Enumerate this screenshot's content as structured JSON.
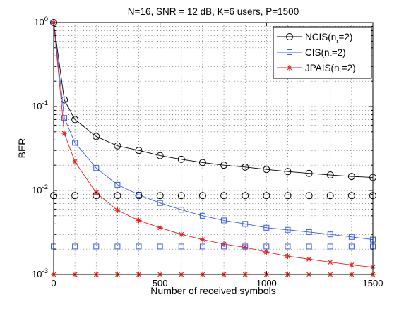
{
  "chart_data": {
    "type": "line",
    "title": "N=16, SNR = 12 dB, K=6 users, P=1500",
    "xlabel": "Number of received symbols",
    "ylabel": "BER",
    "xlim": [
      0,
      1500
    ],
    "ylim": [
      0.001,
      1
    ],
    "yscale": "log",
    "grid": true,
    "legend_position": "top-right",
    "xticks": [
      0,
      500,
      1000,
      1500
    ],
    "xtick_labels": [
      "0",
      "500",
      "1000",
      "1500"
    ],
    "yticks": [
      0.001,
      0.01,
      0.1,
      1
    ],
    "ytick_labels": [
      {
        "base": "10",
        "exp": "-3"
      },
      {
        "base": "10",
        "exp": "-2"
      },
      {
        "base": "10",
        "exp": "-1"
      },
      {
        "base": "10",
        "exp": "0"
      }
    ],
    "series": [
      {
        "name": "NCIS(n_r=2)",
        "legend_main": "NCIS(n",
        "legend_sub": "r",
        "legend_tail": "=2)",
        "color": "#000000",
        "marker": "circle",
        "x": [
          0,
          50,
          100,
          200,
          300,
          400,
          500,
          600,
          700,
          800,
          900,
          1000,
          1100,
          1200,
          1300,
          1400,
          1500
        ],
        "values": [
          1.0,
          0.12,
          0.07,
          0.044,
          0.034,
          0.03,
          0.026,
          0.0235,
          0.0215,
          0.02,
          0.019,
          0.0178,
          0.0168,
          0.016,
          0.0153,
          0.0147,
          0.0143
        ]
      },
      {
        "name": "CIS(n_r=2)",
        "legend_main": "CIS(n",
        "legend_sub": "r",
        "legend_tail": "=2)",
        "color": "#3c5ae6",
        "marker": "square",
        "x": [
          0,
          50,
          100,
          200,
          300,
          400,
          500,
          600,
          700,
          800,
          900,
          1000,
          1100,
          1200,
          1300,
          1400,
          1500
        ],
        "values": [
          1.0,
          0.073,
          0.037,
          0.0185,
          0.0117,
          0.0089,
          0.0071,
          0.0059,
          0.005,
          0.0044,
          0.004,
          0.0036,
          0.0034,
          0.0032,
          0.003,
          0.0028,
          0.0026
        ]
      },
      {
        "name": "JPAIS(n_r=2)",
        "legend_main": "JPAIS(n",
        "legend_sub": "r",
        "legend_tail": "=2)",
        "color": "#e62020",
        "marker": "star",
        "x": [
          0,
          50,
          100,
          200,
          300,
          400,
          500,
          600,
          700,
          800,
          900,
          1000,
          1100,
          1200,
          1300,
          1400,
          1500
        ],
        "values": [
          1.0,
          0.048,
          0.022,
          0.0094,
          0.0058,
          0.0044,
          0.0036,
          0.003,
          0.0026,
          0.0023,
          0.0021,
          0.00185,
          0.00165,
          0.00152,
          0.0014,
          0.0013,
          0.00122
        ]
      },
      {
        "name": "",
        "color": "#000000",
        "marker": "circle",
        "line": false,
        "x": [
          0,
          100,
          200,
          300,
          400,
          500,
          600,
          700,
          800,
          900,
          1000,
          1100,
          1200,
          1300,
          1400,
          1500
        ],
        "values": [
          0.0087,
          0.0087,
          0.0087,
          0.0087,
          0.0087,
          0.0087,
          0.0087,
          0.0087,
          0.0087,
          0.0087,
          0.0087,
          0.0087,
          0.0087,
          0.0087,
          0.0087,
          0.0087
        ]
      },
      {
        "name": "",
        "color": "#3c5ae6",
        "marker": "square",
        "line": false,
        "x": [
          0,
          100,
          200,
          300,
          400,
          500,
          600,
          700,
          800,
          900,
          1000,
          1100,
          1200,
          1300,
          1400,
          1500
        ],
        "values": [
          0.00215,
          0.00215,
          0.00215,
          0.00215,
          0.00215,
          0.00215,
          0.00215,
          0.00215,
          0.00215,
          0.00215,
          0.00215,
          0.00215,
          0.00215,
          0.00215,
          0.00215,
          0.00215
        ]
      },
      {
        "name": "",
        "color": "#e62020",
        "marker": "star",
        "line": false,
        "x": [
          0,
          100,
          200,
          300,
          400,
          500,
          600,
          700,
          800,
          900,
          1000,
          1100,
          1200,
          1300,
          1400,
          1500
        ],
        "values": [
          0.001,
          0.001,
          0.001,
          0.001,
          0.001,
          0.001,
          0.001,
          0.001,
          0.001,
          0.001,
          0.001,
          0.001,
          0.001,
          0.001,
          0.001,
          0.001
        ]
      }
    ]
  }
}
